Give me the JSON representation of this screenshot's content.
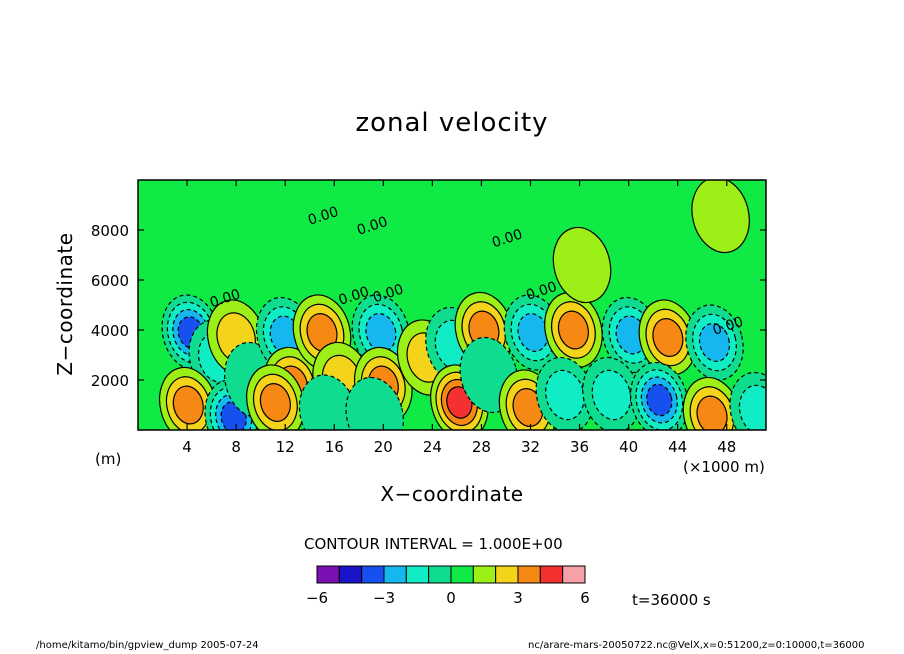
{
  "chart_data": {
    "type": "heatmap",
    "title": "zonal velocity",
    "xlabel": "X−coordinate",
    "ylabel": "Z−coordinate",
    "x_unit": "(×1000 m)",
    "y_unit": "(m)",
    "xlim": [
      0,
      51.2
    ],
    "ylim": [
      0,
      10000
    ],
    "x_ticks": [
      4,
      8,
      12,
      16,
      20,
      24,
      28,
      32,
      36,
      40,
      44,
      48
    ],
    "x_tick_labels": [
      "4",
      "8",
      "12",
      "16",
      "20",
      "24",
      "28",
      "32",
      "36",
      "40",
      "44",
      "48"
    ],
    "y_ticks": [
      2000,
      4000,
      6000,
      8000
    ],
    "y_tick_labels": [
      "2000",
      "4000",
      "6000",
      "8000"
    ],
    "contour_label": "0.00",
    "contour_interval_text": "CONTOUR INTERVAL = 1.000E+00",
    "colorbar": {
      "levels": [
        -6,
        -5,
        -4,
        -3,
        -2,
        -1,
        0,
        1,
        2,
        3,
        4,
        5,
        6
      ],
      "tick_values": [
        -6,
        -3,
        0,
        3,
        6
      ],
      "tick_labels": [
        "−6",
        "−3",
        "0",
        "3",
        "6"
      ],
      "colors": [
        "#7a0fb4",
        "#1a14c8",
        "#1650ee",
        "#14b8ee",
        "#10ecc4",
        "#10dc90",
        "#10ea44",
        "#9cf018",
        "#f4d41a",
        "#f68814",
        "#f43030",
        "#f6a0a8"
      ]
    },
    "background_color": "#10ea44",
    "features": [
      {
        "x": 4.3,
        "z": 3900,
        "value": -4
      },
      {
        "x": 6.5,
        "z": 2900,
        "value": -2
      },
      {
        "x": 4.1,
        "z": 1000,
        "value": 3
      },
      {
        "x": 7.8,
        "z": 500,
        "value": -4
      },
      {
        "x": 8.0,
        "z": 3700,
        "value": 2
      },
      {
        "x": 9.4,
        "z": 2000,
        "value": -1
      },
      {
        "x": 12.0,
        "z": 3800,
        "value": -3
      },
      {
        "x": 12.6,
        "z": 1800,
        "value": 3
      },
      {
        "x": 11.2,
        "z": 1100,
        "value": 3
      },
      {
        "x": 15.0,
        "z": 3900,
        "value": 3
      },
      {
        "x": 16.6,
        "z": 2000,
        "value": 2
      },
      {
        "x": 15.5,
        "z": 700,
        "value": -1
      },
      {
        "x": 19.8,
        "z": 3900,
        "value": -3
      },
      {
        "x": 20.0,
        "z": 1800,
        "value": 3
      },
      {
        "x": 19.3,
        "z": 600,
        "value": -1
      },
      {
        "x": 23.5,
        "z": 2900,
        "value": 2
      },
      {
        "x": 25.8,
        "z": 3400,
        "value": -2
      },
      {
        "x": 26.2,
        "z": 1100,
        "value": 4
      },
      {
        "x": 28.2,
        "z": 4000,
        "value": 3
      },
      {
        "x": 28.6,
        "z": 2200,
        "value": -1
      },
      {
        "x": 32.2,
        "z": 3900,
        "value": -3
      },
      {
        "x": 31.8,
        "z": 900,
        "value": 3
      },
      {
        "x": 35.5,
        "z": 4000,
        "value": 3
      },
      {
        "x": 34.8,
        "z": 1400,
        "value": -2
      },
      {
        "x": 40.2,
        "z": 3800,
        "value": -3
      },
      {
        "x": 38.6,
        "z": 1400,
        "value": -2
      },
      {
        "x": 43.2,
        "z": 3700,
        "value": 3
      },
      {
        "x": 42.5,
        "z": 1200,
        "value": -4
      },
      {
        "x": 47.0,
        "z": 3500,
        "value": -3
      },
      {
        "x": 46.8,
        "z": 600,
        "value": 3
      },
      {
        "x": 50.6,
        "z": 800,
        "value": -2
      },
      {
        "x": 36.2,
        "z": 6600,
        "value": 1
      },
      {
        "x": 47.5,
        "z": 8600,
        "value": 1
      }
    ]
  },
  "footer": {
    "left": "/home/kitamo/bin/gpview_dump  2005-07-24",
    "right": "nc/arare-mars-20050722.nc@VelX,x=0:51200,z=0:10000,t=36000"
  },
  "time_label": "t=36000  s"
}
